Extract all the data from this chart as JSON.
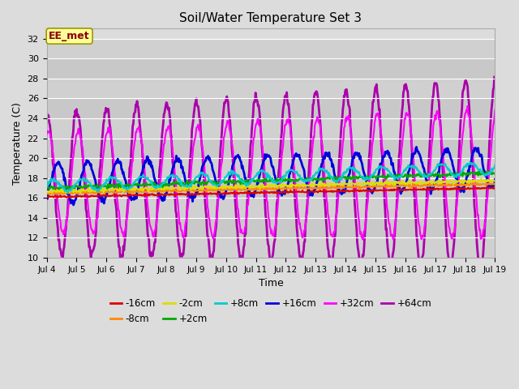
{
  "title": "Soil/Water Temperature Set 3",
  "xlabel": "Time",
  "ylabel": "Temperature (C)",
  "ylim": [
    10,
    33
  ],
  "yticks": [
    10,
    12,
    14,
    16,
    18,
    20,
    22,
    24,
    26,
    28,
    30,
    32
  ],
  "background_color": "#dcdcdc",
  "plot_bg_color": "#dcdcdc",
  "annotation_text": "EE_met",
  "annotation_bg": "#ffff99",
  "annotation_border": "#999900",
  "annotation_text_color": "#880000",
  "n_days": 15,
  "xtick_labels": [
    "Jul 4",
    "Jul 5",
    "Jul 6",
    "Jul 7",
    "Jul 8",
    "Jul 9",
    "Jul 10",
    "Jul 11",
    "Jul 12",
    "Jul 13",
    "Jul 14",
    "Jul 15",
    "Jul 16",
    "Jul 17",
    "Jul 18",
    "Jul 19"
  ],
  "series_colors": {
    "-16cm": "#dd0000",
    "-8cm": "#ff8800",
    "-2cm": "#dddd00",
    "+2cm": "#00aa00",
    "+8cm": "#00cccc",
    "+16cm": "#0000dd",
    "+32cm": "#ff00ff",
    "+64cm": "#aa00aa"
  },
  "series_linewidths": {
    "-16cm": 1.5,
    "-8cm": 1.5,
    "-2cm": 1.5,
    "+2cm": 1.5,
    "+8cm": 1.5,
    "+16cm": 2.0,
    "+32cm": 1.5,
    "+64cm": 2.0
  },
  "band_colors": [
    "#d0d0d0",
    "#c8c8c8"
  ],
  "grid_color": "#ffffff"
}
